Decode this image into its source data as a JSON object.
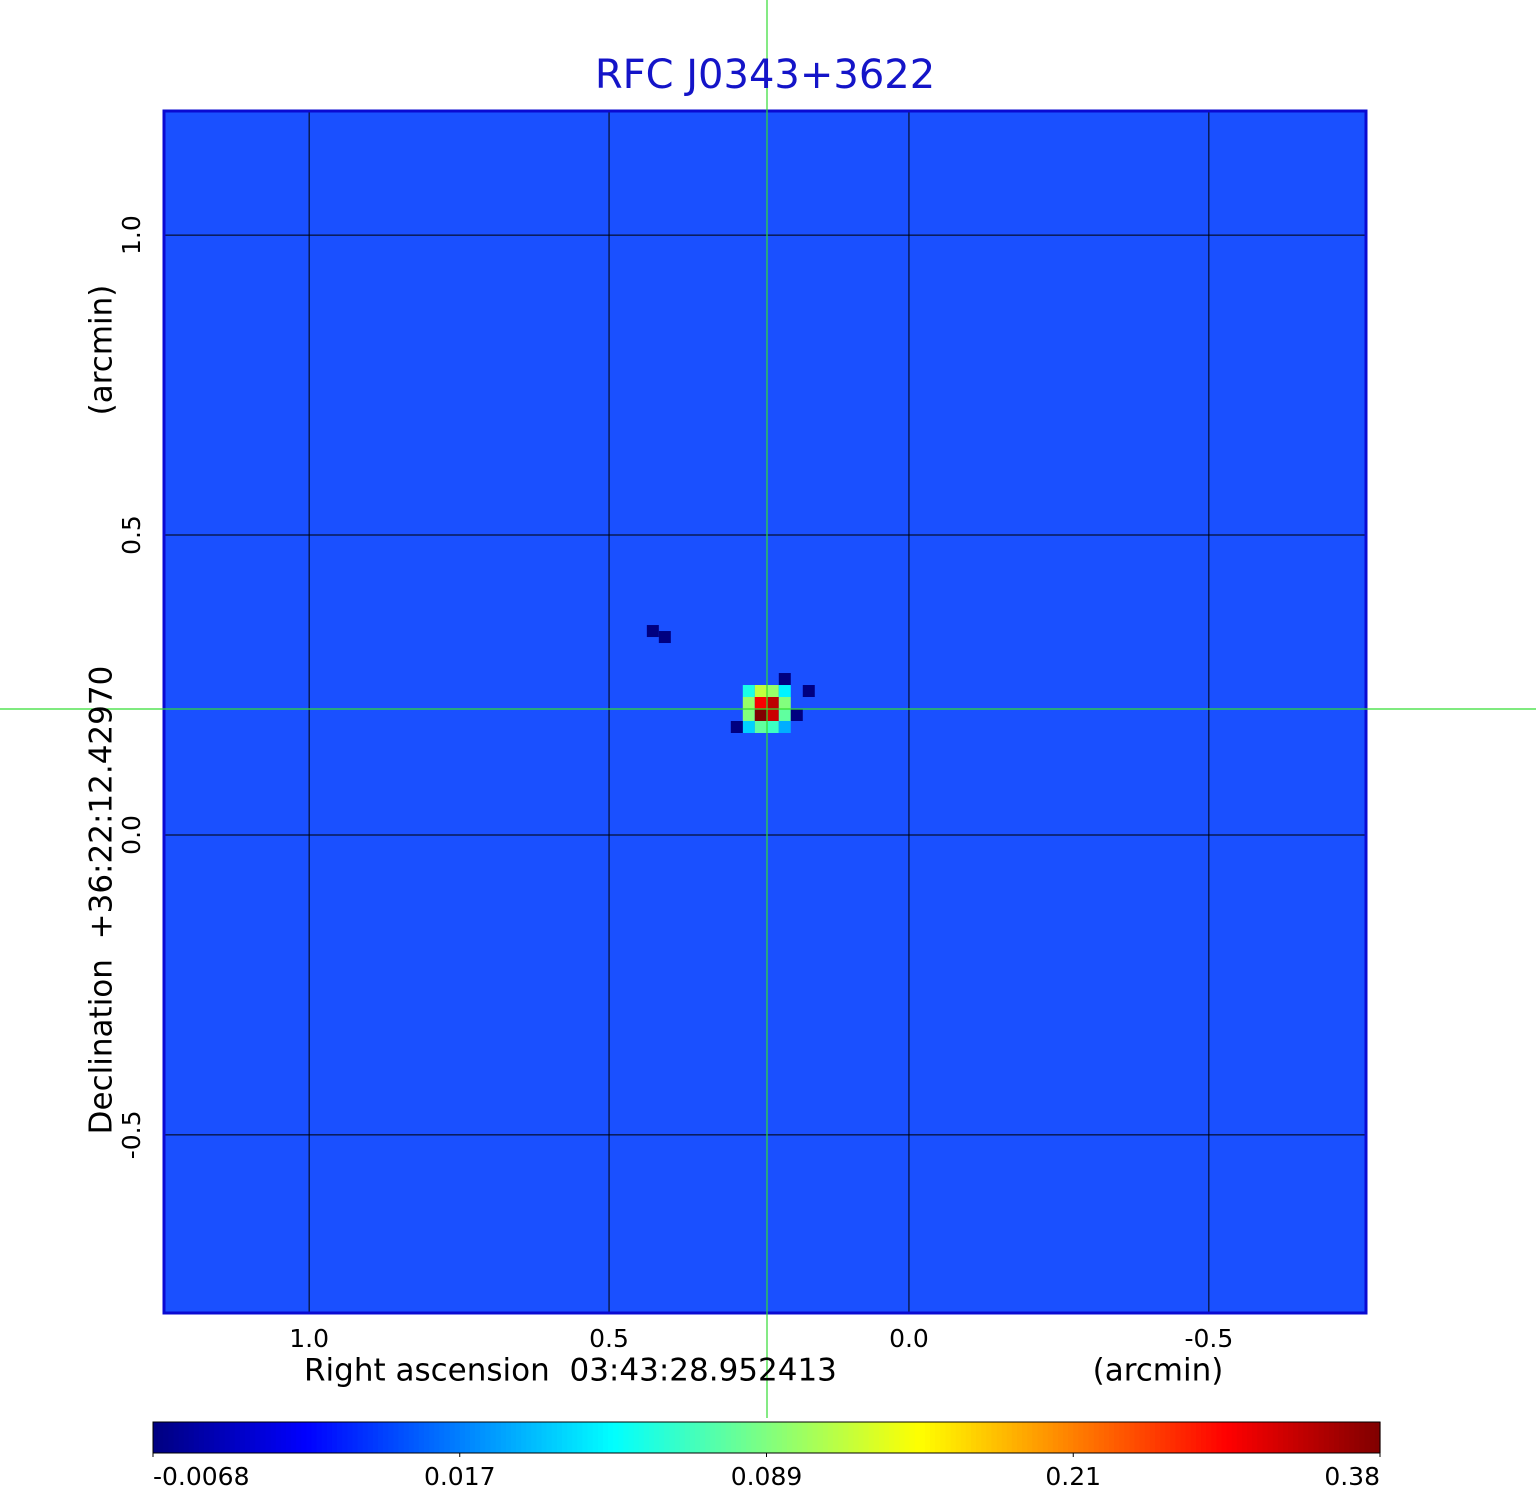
{
  "chart_data": {
    "type": "heatmap",
    "title": "RFC J0343+3622",
    "xlabel": "Right ascension  03:43:28.952413",
    "xunit": "(arcmin)",
    "ylabel": "Declination  +36:22:12.42970",
    "yunit": "(arcmin)",
    "xlim": [
      1.242,
      -0.762
    ],
    "ylim": [
      -0.797,
      1.207
    ],
    "xticks": [
      {
        "value": 1,
        "label": "1.0"
      },
      0.5,
      {
        "value": 0,
        "label": "0.0"
      },
      -0.5
    ],
    "yticks": [
      {
        "value": 1,
        "label": "1.0"
      },
      0.5,
      {
        "value": 0,
        "label": "0.0"
      },
      -0.5
    ],
    "grid": true,
    "cell_size": 0.02,
    "x": [
      0.267,
      0.247,
      0.227,
      0.207,
      0.267,
      0.247,
      0.227,
      0.207,
      0.267,
      0.247,
      0.227,
      0.207,
      0.267,
      0.247,
      0.227,
      0.207,
      0.287,
      0.187,
      0.207,
      0.167,
      0.427,
      0.407
    ],
    "y": [
      0.24,
      0.24,
      0.24,
      0.24,
      0.22,
      0.22,
      0.22,
      0.22,
      0.2,
      0.2,
      0.2,
      0.2,
      0.18,
      0.18,
      0.18,
      0.18,
      0.18,
      0.2,
      0.26,
      0.24,
      0.34,
      0.33
    ],
    "values": [
      0.06,
      0.12,
      0.1,
      0.05,
      0.1,
      0.3,
      0.34,
      0.09,
      0.09,
      0.38,
      0.33,
      0.08,
      0.04,
      0.08,
      0.07,
      0.03,
      -0.0068,
      -0.0068,
      -0.0068,
      -0.0068,
      -0.0068,
      -0.0068
    ],
    "colorbar": {
      "lim": [
        -0.0068,
        0.38
      ],
      "ticks": [
        -0.0068,
        0.017,
        0.089,
        0.21,
        0.38
      ]
    }
  }
}
